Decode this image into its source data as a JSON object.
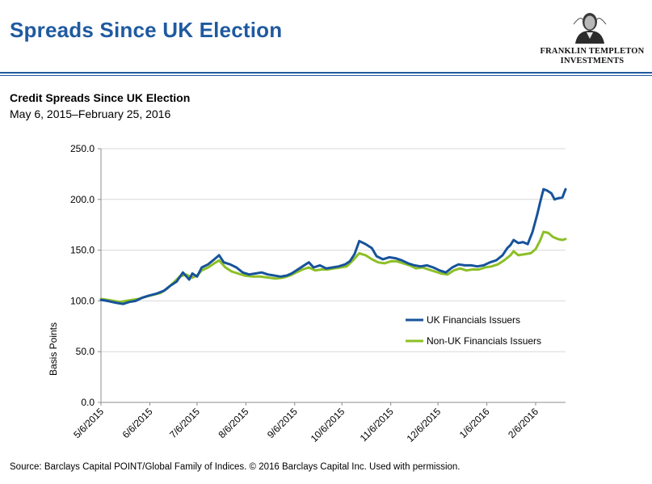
{
  "header": {
    "title": "Spreads Since UK Election",
    "logo_line1": "FRANKLIN TEMPLETON",
    "logo_line2": "INVESTMENTS",
    "logo_icon": "benjamin-franklin-portrait"
  },
  "colors": {
    "title": "#1f5aa0",
    "series_uk": "#17539a",
    "series_nonuk": "#8cbf26",
    "grid": "#d9d9d9",
    "axis": "#8c8c8c"
  },
  "footer": {
    "source": "Source: Barclays Capital POINT/Global Family of Indices. © 2016 Barclays Capital Inc. Used with permission."
  },
  "chart_data": {
    "type": "line",
    "title": "Credit Spreads Since UK Election",
    "subtitle": "May 6, 2015–February 25, 2016",
    "xlabel": "",
    "ylabel": "Basis Points",
    "ylim": [
      0,
      250
    ],
    "yticks": [
      "0.0",
      "50.0",
      "100.0",
      "150.0",
      "200.0",
      "250.0"
    ],
    "xlim": [
      "2015-05-06",
      "2016-02-25"
    ],
    "xticks": [
      "5/6/2015",
      "6/6/2015",
      "7/6/2015",
      "8/6/2015",
      "9/6/2015",
      "10/6/2015",
      "11/6/2015",
      "12/6/2015",
      "1/6/2016",
      "2/6/2016"
    ],
    "grid": "horizontal",
    "legend_position": "center-right",
    "series": [
      {
        "name": "UK Financials Issuers",
        "color": "#17539a",
        "points": [
          [
            "2015-05-06",
            101
          ],
          [
            "2015-05-10",
            100
          ],
          [
            "2015-05-13",
            99
          ],
          [
            "2015-05-16",
            98
          ],
          [
            "2015-05-20",
            97
          ],
          [
            "2015-05-24",
            99
          ],
          [
            "2015-05-28",
            100
          ],
          [
            "2015-06-01",
            103
          ],
          [
            "2015-06-05",
            105
          ],
          [
            "2015-06-10",
            107
          ],
          [
            "2015-06-15",
            110
          ],
          [
            "2015-06-19",
            115
          ],
          [
            "2015-06-23",
            119
          ],
          [
            "2015-06-27",
            128
          ],
          [
            "2015-07-01",
            121
          ],
          [
            "2015-07-03",
            127
          ],
          [
            "2015-07-06",
            124
          ],
          [
            "2015-07-09",
            133
          ],
          [
            "2015-07-13",
            136
          ],
          [
            "2015-07-17",
            141
          ],
          [
            "2015-07-20",
            145
          ],
          [
            "2015-07-23",
            138
          ],
          [
            "2015-07-27",
            136
          ],
          [
            "2015-07-31",
            133
          ],
          [
            "2015-08-04",
            128
          ],
          [
            "2015-08-08",
            126
          ],
          [
            "2015-08-12",
            127
          ],
          [
            "2015-08-16",
            128
          ],
          [
            "2015-08-20",
            126
          ],
          [
            "2015-08-24",
            125
          ],
          [
            "2015-08-28",
            124
          ],
          [
            "2015-09-01",
            125
          ],
          [
            "2015-09-04",
            127
          ],
          [
            "2015-09-07",
            130
          ],
          [
            "2015-09-11",
            134
          ],
          [
            "2015-09-15",
            138
          ],
          [
            "2015-09-18",
            133
          ],
          [
            "2015-09-22",
            135
          ],
          [
            "2015-09-26",
            132
          ],
          [
            "2015-09-30",
            133
          ],
          [
            "2015-10-04",
            134
          ],
          [
            "2015-10-08",
            136
          ],
          [
            "2015-10-11",
            139
          ],
          [
            "2015-10-14",
            146
          ],
          [
            "2015-10-17",
            159
          ],
          [
            "2015-10-21",
            156
          ],
          [
            "2015-10-25",
            152
          ],
          [
            "2015-10-28",
            144
          ],
          [
            "2015-11-01",
            141
          ],
          [
            "2015-11-05",
            143
          ],
          [
            "2015-11-09",
            142
          ],
          [
            "2015-11-13",
            140
          ],
          [
            "2015-11-17",
            137
          ],
          [
            "2015-11-21",
            135
          ],
          [
            "2015-11-25",
            134
          ],
          [
            "2015-11-29",
            135
          ],
          [
            "2015-12-03",
            133
          ],
          [
            "2015-12-07",
            130
          ],
          [
            "2015-12-11",
            128
          ],
          [
            "2015-12-15",
            133
          ],
          [
            "2015-12-19",
            136
          ],
          [
            "2015-12-23",
            135
          ],
          [
            "2015-12-27",
            135
          ],
          [
            "2015-12-31",
            134
          ],
          [
            "2016-01-04",
            135
          ],
          [
            "2016-01-08",
            138
          ],
          [
            "2016-01-12",
            140
          ],
          [
            "2016-01-16",
            145
          ],
          [
            "2016-01-19",
            152
          ],
          [
            "2016-01-21",
            155
          ],
          [
            "2016-01-23",
            160
          ],
          [
            "2016-01-26",
            157
          ],
          [
            "2016-01-29",
            158
          ],
          [
            "2016-02-01",
            156
          ],
          [
            "2016-02-04",
            168
          ],
          [
            "2016-02-07",
            185
          ],
          [
            "2016-02-09",
            198
          ],
          [
            "2016-02-11",
            210
          ],
          [
            "2016-02-13",
            209
          ],
          [
            "2016-02-16",
            206
          ],
          [
            "2016-02-18",
            200
          ],
          [
            "2016-02-20",
            201
          ],
          [
            "2016-02-23",
            202
          ],
          [
            "2016-02-25",
            210
          ]
        ]
      },
      {
        "name": "Non-UK Financials Issuers",
        "color": "#8cbf26",
        "points": [
          [
            "2015-05-06",
            102
          ],
          [
            "2015-05-10",
            101
          ],
          [
            "2015-05-14",
            100
          ],
          [
            "2015-05-18",
            99
          ],
          [
            "2015-05-22",
            100
          ],
          [
            "2015-05-26",
            101
          ],
          [
            "2015-05-30",
            102
          ],
          [
            "2015-06-03",
            104
          ],
          [
            "2015-06-08",
            106
          ],
          [
            "2015-06-13",
            108
          ],
          [
            "2015-06-17",
            112
          ],
          [
            "2015-06-21",
            118
          ],
          [
            "2015-06-25",
            124
          ],
          [
            "2015-06-29",
            126
          ],
          [
            "2015-07-03",
            123
          ],
          [
            "2015-07-06",
            125
          ],
          [
            "2015-07-09",
            130
          ],
          [
            "2015-07-13",
            133
          ],
          [
            "2015-07-17",
            137
          ],
          [
            "2015-07-20",
            140
          ],
          [
            "2015-07-24",
            133
          ],
          [
            "2015-07-28",
            129
          ],
          [
            "2015-08-01",
            127
          ],
          [
            "2015-08-05",
            125
          ],
          [
            "2015-08-10",
            124
          ],
          [
            "2015-08-15",
            124
          ],
          [
            "2015-08-20",
            123
          ],
          [
            "2015-08-25",
            122
          ],
          [
            "2015-08-30",
            123
          ],
          [
            "2015-09-03",
            125
          ],
          [
            "2015-09-07",
            128
          ],
          [
            "2015-09-11",
            131
          ],
          [
            "2015-09-15",
            133
          ],
          [
            "2015-09-19",
            130
          ],
          [
            "2015-09-23",
            131
          ],
          [
            "2015-09-27",
            131
          ],
          [
            "2015-10-01",
            132
          ],
          [
            "2015-10-05",
            133
          ],
          [
            "2015-10-09",
            134
          ],
          [
            "2015-10-13",
            140
          ],
          [
            "2015-10-17",
            147
          ],
          [
            "2015-10-21",
            145
          ],
          [
            "2015-10-25",
            141
          ],
          [
            "2015-10-29",
            138
          ],
          [
            "2015-11-02",
            137
          ],
          [
            "2015-11-06",
            139
          ],
          [
            "2015-11-10",
            139
          ],
          [
            "2015-11-14",
            137
          ],
          [
            "2015-11-18",
            135
          ],
          [
            "2015-11-22",
            132
          ],
          [
            "2015-11-26",
            133
          ],
          [
            "2015-11-30",
            131
          ],
          [
            "2015-12-04",
            129
          ],
          [
            "2015-12-08",
            127
          ],
          [
            "2015-12-12",
            126
          ],
          [
            "2015-12-16",
            130
          ],
          [
            "2015-12-20",
            132
          ],
          [
            "2015-12-24",
            130
          ],
          [
            "2015-12-28",
            131
          ],
          [
            "2016-01-01",
            131
          ],
          [
            "2016-01-05",
            133
          ],
          [
            "2016-01-09",
            134
          ],
          [
            "2016-01-13",
            136
          ],
          [
            "2016-01-17",
            140
          ],
          [
            "2016-01-21",
            145
          ],
          [
            "2016-01-23",
            149
          ],
          [
            "2016-01-26",
            145
          ],
          [
            "2016-01-30",
            146
          ],
          [
            "2016-02-03",
            147
          ],
          [
            "2016-02-06",
            151
          ],
          [
            "2016-02-09",
            160
          ],
          [
            "2016-02-11",
            168
          ],
          [
            "2016-02-14",
            167
          ],
          [
            "2016-02-17",
            163
          ],
          [
            "2016-02-20",
            161
          ],
          [
            "2016-02-23",
            160
          ],
          [
            "2016-02-25",
            161
          ]
        ]
      }
    ]
  }
}
